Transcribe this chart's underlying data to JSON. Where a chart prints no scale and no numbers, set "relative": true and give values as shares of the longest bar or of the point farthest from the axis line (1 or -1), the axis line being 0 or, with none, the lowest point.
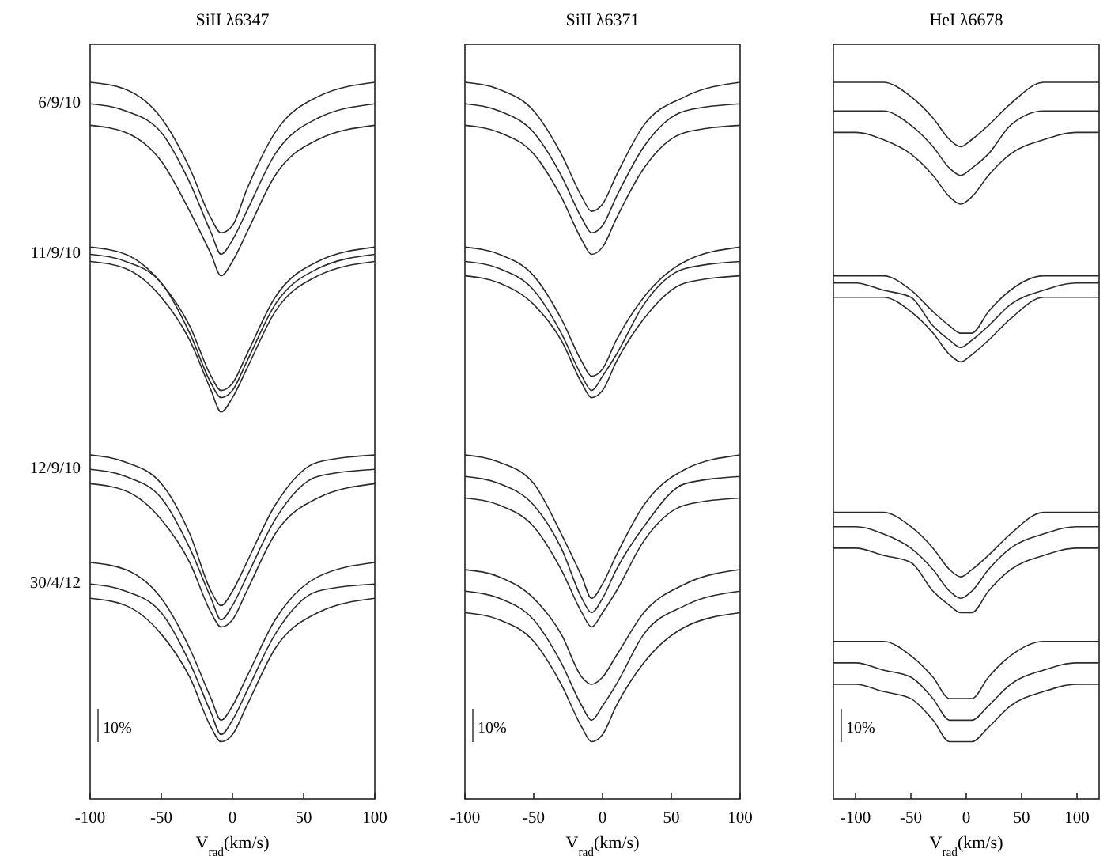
{
  "chart_data": [
    {
      "type": "line",
      "title": "SiII λ6347",
      "xlabel": "V$_{rad}$(km/s)",
      "relative": true,
      "xlim": [
        -100,
        100
      ],
      "xticks": [
        -100,
        -50,
        0,
        50,
        100
      ],
      "annotations": [
        "10%"
      ],
      "x": [
        -100,
        -75,
        -50,
        -30,
        -15,
        -8,
        0,
        10,
        30,
        60,
        100
      ],
      "series": [
        {
          "color": "#2a2a2a",
          "values": [
            1,
            0.99,
            0.95,
            0.88,
            0.81,
            0.79,
            0.8,
            0.85,
            0.93,
            0.98,
            1
          ]
        },
        {
          "name": "6/9/10",
          "color": "#2a2a2a",
          "values": [
            0.97,
            0.96,
            0.93,
            0.86,
            0.79,
            0.76,
            0.78,
            0.82,
            0.9,
            0.95,
            0.97
          ]
        },
        {
          "color": "#2a2a2a",
          "values": [
            0.94,
            0.93,
            0.89,
            0.82,
            0.76,
            0.73,
            0.75,
            0.79,
            0.87,
            0.92,
            0.94
          ]
        },
        {
          "color": "#2a2a2a",
          "values": [
            0.77,
            0.76,
            0.72,
            0.66,
            0.59,
            0.57,
            0.58,
            0.62,
            0.7,
            0.75,
            0.77
          ]
        },
        {
          "name": "11/9/10",
          "color": "#2a2a2a",
          "values": [
            0.76,
            0.75,
            0.72,
            0.65,
            0.58,
            0.56,
            0.57,
            0.61,
            0.69,
            0.74,
            0.76
          ]
        },
        {
          "color": "#2a2a2a",
          "values": [
            0.75,
            0.74,
            0.7,
            0.64,
            0.57,
            0.54,
            0.56,
            0.6,
            0.68,
            0.73,
            0.75
          ]
        },
        {
          "color": "#2a2a2a",
          "values": [
            0.48,
            0.47,
            0.44,
            0.37,
            0.29,
            0.27,
            0.29,
            0.33,
            0.41,
            0.47,
            0.48
          ]
        },
        {
          "name": "12/9/10",
          "color": "#2a2a2a",
          "values": [
            0.46,
            0.45,
            0.42,
            0.35,
            0.28,
            0.25,
            0.27,
            0.31,
            0.39,
            0.45,
            0.46
          ]
        },
        {
          "color": "#2a2a2a",
          "values": [
            0.44,
            0.43,
            0.39,
            0.33,
            0.26,
            0.24,
            0.25,
            0.29,
            0.37,
            0.42,
            0.44
          ]
        },
        {
          "color": "#2a2a2a",
          "values": [
            0.33,
            0.32,
            0.28,
            0.21,
            0.14,
            0.11,
            0.13,
            0.17,
            0.25,
            0.31,
            0.33
          ]
        },
        {
          "name": "30/4/12",
          "color": "#2a2a2a",
          "values": [
            0.3,
            0.29,
            0.26,
            0.19,
            0.12,
            0.09,
            0.11,
            0.15,
            0.23,
            0.29,
            0.3
          ]
        },
        {
          "color": "#2a2a2a",
          "values": [
            0.28,
            0.27,
            0.23,
            0.17,
            0.1,
            0.08,
            0.09,
            0.13,
            0.21,
            0.26,
            0.28
          ]
        }
      ]
    },
    {
      "type": "line",
      "title": "SiII λ6371",
      "xlabel": "V$_{rad}$(km/s)",
      "relative": true,
      "xlim": [
        -100,
        100
      ],
      "xticks": [
        -100,
        -50,
        0,
        50,
        100
      ],
      "annotations": [
        "10%"
      ],
      "x": [
        -100,
        -75,
        -50,
        -30,
        -15,
        -8,
        0,
        10,
        30,
        60,
        100
      ],
      "series": [
        {
          "color": "#2a2a2a",
          "values": [
            1,
            0.99,
            0.96,
            0.9,
            0.84,
            0.82,
            0.83,
            0.87,
            0.94,
            0.98,
            1
          ]
        },
        {
          "color": "#2a2a2a",
          "values": [
            0.97,
            0.96,
            0.93,
            0.87,
            0.81,
            0.79,
            0.8,
            0.84,
            0.91,
            0.96,
            0.97
          ]
        },
        {
          "color": "#2a2a2a",
          "values": [
            0.94,
            0.93,
            0.9,
            0.84,
            0.78,
            0.76,
            0.77,
            0.81,
            0.88,
            0.93,
            0.94
          ]
        },
        {
          "color": "#2a2a2a",
          "values": [
            0.77,
            0.76,
            0.73,
            0.67,
            0.61,
            0.59,
            0.6,
            0.64,
            0.7,
            0.75,
            0.77
          ]
        },
        {
          "color": "#2a2a2a",
          "values": [
            0.75,
            0.74,
            0.71,
            0.65,
            0.59,
            0.57,
            0.59,
            0.62,
            0.69,
            0.74,
            0.75
          ]
        },
        {
          "color": "#2a2a2a",
          "values": [
            0.73,
            0.72,
            0.69,
            0.64,
            0.58,
            0.56,
            0.57,
            0.61,
            0.67,
            0.72,
            0.73
          ]
        },
        {
          "color": "#2a2a2a",
          "values": [
            0.48,
            0.47,
            0.44,
            0.37,
            0.31,
            0.28,
            0.3,
            0.34,
            0.41,
            0.46,
            0.48
          ]
        },
        {
          "color": "#2a2a2a",
          "values": [
            0.45,
            0.44,
            0.41,
            0.35,
            0.28,
            0.26,
            0.28,
            0.32,
            0.38,
            0.44,
            0.45
          ]
        },
        {
          "color": "#2a2a2a",
          "values": [
            0.42,
            0.41,
            0.38,
            0.32,
            0.26,
            0.24,
            0.26,
            0.29,
            0.36,
            0.41,
            0.42
          ]
        },
        {
          "color": "#2a2a2a",
          "values": [
            0.32,
            0.31,
            0.28,
            0.23,
            0.17,
            0.16,
            0.17,
            0.2,
            0.26,
            0.3,
            0.32
          ]
        },
        {
          "color": "#2a2a2a",
          "values": [
            0.29,
            0.28,
            0.25,
            0.19,
            0.13,
            0.11,
            0.13,
            0.16,
            0.23,
            0.27,
            0.29
          ]
        },
        {
          "color": "#2a2a2a",
          "values": [
            0.26,
            0.25,
            0.22,
            0.16,
            0.1,
            0.08,
            0.09,
            0.13,
            0.19,
            0.24,
            0.26
          ]
        }
      ]
    },
    {
      "type": "line",
      "title": "HeI λ6678",
      "xlabel": "V$_{rad}$(km/s)",
      "relative": true,
      "xlim": [
        -120,
        120
      ],
      "xticks": [
        -100,
        -50,
        0,
        50,
        100
      ],
      "annotations": [
        "10%"
      ],
      "x": [
        -120,
        -100,
        -75,
        -50,
        -30,
        -15,
        -5,
        5,
        20,
        40,
        70,
        100,
        120
      ],
      "series": [
        {
          "color": "#2a2a2a",
          "values": [
            1,
            1,
            1,
            0.98,
            0.95,
            0.92,
            0.91,
            0.92,
            0.94,
            0.97,
            1,
            1,
            1
          ]
        },
        {
          "color": "#2a2a2a",
          "values": [
            0.96,
            0.96,
            0.96,
            0.94,
            0.91,
            0.88,
            0.87,
            0.88,
            0.9,
            0.94,
            0.96,
            0.96,
            0.96
          ]
        },
        {
          "color": "#2a2a2a",
          "values": [
            0.93,
            0.93,
            0.92,
            0.9,
            0.87,
            0.84,
            0.83,
            0.84,
            0.87,
            0.9,
            0.92,
            0.93,
            0.93
          ]
        },
        {
          "color": "#2a2a2a",
          "values": [
            0.73,
            0.73,
            0.73,
            0.71,
            0.68,
            0.66,
            0.65,
            0.65,
            0.68,
            0.71,
            0.73,
            0.73,
            0.73
          ]
        },
        {
          "color": "#2a2a2a",
          "values": [
            0.72,
            0.72,
            0.71,
            0.7,
            0.66,
            0.64,
            0.63,
            0.64,
            0.66,
            0.69,
            0.71,
            0.72,
            0.72
          ]
        },
        {
          "color": "#2a2a2a",
          "values": [
            0.7,
            0.7,
            0.7,
            0.68,
            0.65,
            0.62,
            0.61,
            0.62,
            0.64,
            0.67,
            0.7,
            0.7,
            0.7
          ]
        },
        {
          "color": "#2a2a2a",
          "values": [
            0.4,
            0.4,
            0.4,
            0.38,
            0.35,
            0.32,
            0.31,
            0.32,
            0.34,
            0.37,
            0.4,
            0.4,
            0.4
          ]
        },
        {
          "color": "#2a2a2a",
          "values": [
            0.38,
            0.38,
            0.37,
            0.35,
            0.32,
            0.29,
            0.28,
            0.29,
            0.32,
            0.35,
            0.37,
            0.38,
            0.38
          ]
        },
        {
          "color": "#2a2a2a",
          "values": [
            0.35,
            0.35,
            0.34,
            0.33,
            0.29,
            0.27,
            0.26,
            0.26,
            0.29,
            0.32,
            0.34,
            0.35,
            0.35
          ]
        },
        {
          "color": "#2a2a2a",
          "values": [
            0.22,
            0.22,
            0.22,
            0.2,
            0.17,
            0.14,
            0.14,
            0.14,
            0.17,
            0.2,
            0.22,
            0.22,
            0.22
          ]
        },
        {
          "color": "#2a2a2a",
          "values": [
            0.19,
            0.19,
            0.18,
            0.17,
            0.14,
            0.11,
            0.11,
            0.11,
            0.13,
            0.16,
            0.18,
            0.19,
            0.19
          ]
        },
        {
          "color": "#2a2a2a",
          "values": [
            0.16,
            0.16,
            0.15,
            0.14,
            0.11,
            0.08,
            0.08,
            0.08,
            0.1,
            0.13,
            0.15,
            0.16,
            0.16
          ]
        }
      ]
    }
  ]
}
